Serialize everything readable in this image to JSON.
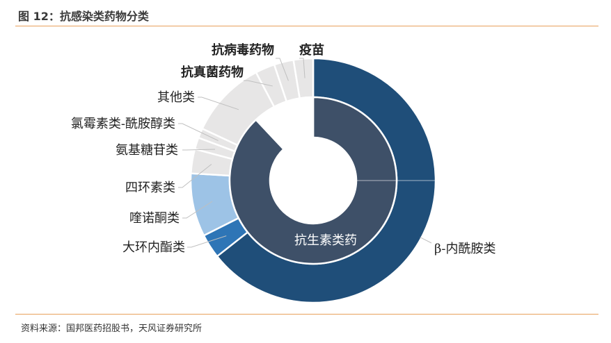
{
  "header": {
    "title": "图 12：抗感染类药物分类"
  },
  "footer": {
    "source": "资料来源：国邦医药招股书，天风证券研究所"
  },
  "chart_data": {
    "type": "pie",
    "subtype": "nested-donut",
    "inner_ring": [
      {
        "label": "抗生素类药",
        "value": 88,
        "color": "#3e5068"
      },
      {
        "label": "",
        "value": 12,
        "color": "#ffffff"
      }
    ],
    "outer_ring": [
      {
        "label": "β-内酰胺类",
        "value": 50.0,
        "color": "#1f4e79",
        "bold": false
      },
      {
        "label": "大环内酯类",
        "value": 2.5,
        "color": "#2e75b6",
        "bold": false
      },
      {
        "label": "喹诺酮类",
        "value": 6.5,
        "color": "#9dc3e6",
        "bold": false
      },
      {
        "label": "四环素类",
        "value": 2.5,
        "color": "#e7e6e6",
        "bold": false
      },
      {
        "label": "氨基糖苷类",
        "value": 1.2,
        "color": "#e7e6e6",
        "bold": false
      },
      {
        "label": "氯霉素类-酰胺醇类",
        "value": 1.0,
        "color": "#e7e6e6",
        "bold": false
      },
      {
        "label": "其他类",
        "value": 8.0,
        "color": "#e7e6e6",
        "bold": false
      },
      {
        "label": "抗真菌药物",
        "value": 2.0,
        "color": "#e7e6e6",
        "bold": true
      },
      {
        "label": "抗病毒药物",
        "value": 2.0,
        "color": "#e7e6e6",
        "bold": true
      },
      {
        "label": "疫苗",
        "value": 2.0,
        "color": "#e7e6e6",
        "bold": true
      }
    ]
  }
}
